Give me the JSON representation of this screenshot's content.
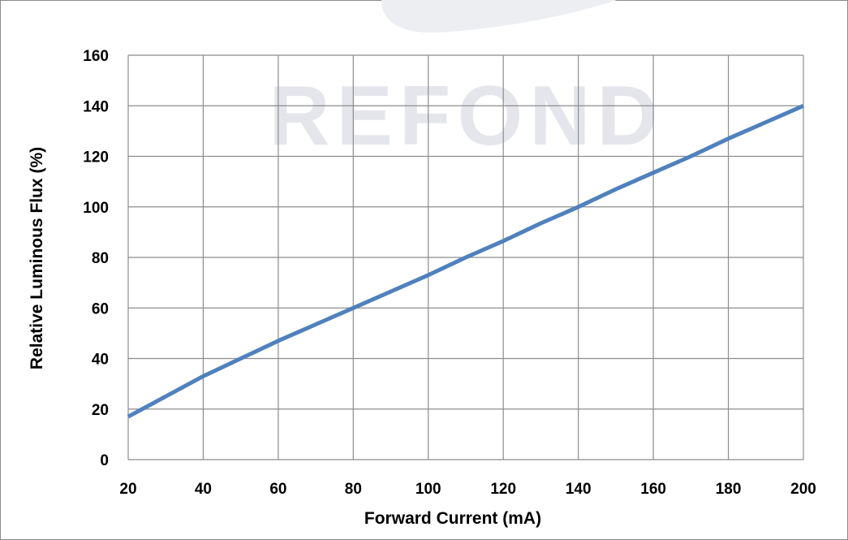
{
  "chart_data": {
    "type": "line",
    "title": "",
    "xlabel": "Forward Current (mA)",
    "ylabel": "Relative Luminous Flux (%)",
    "xlim": [
      20,
      200
    ],
    "ylim": [
      0,
      160
    ],
    "x_ticks": [
      20,
      40,
      60,
      80,
      100,
      120,
      140,
      160,
      180,
      200
    ],
    "y_ticks": [
      0,
      20,
      40,
      60,
      80,
      100,
      120,
      140,
      160
    ],
    "grid": true,
    "legend": "none",
    "series": [
      {
        "color": "#4f81bd",
        "x": [
          20,
          30,
          40,
          50,
          60,
          70,
          80,
          90,
          100,
          110,
          120,
          130,
          140,
          150,
          160,
          170,
          180,
          190,
          200
        ],
        "y": [
          17,
          25,
          33,
          40,
          47,
          53.5,
          60,
          66.5,
          73,
          80,
          86.5,
          93.5,
          100,
          107,
          113.5,
          120,
          127,
          133.5,
          140
        ]
      }
    ]
  },
  "watermark": {
    "text": "REFOND",
    "color": "#e4e6ec"
  }
}
